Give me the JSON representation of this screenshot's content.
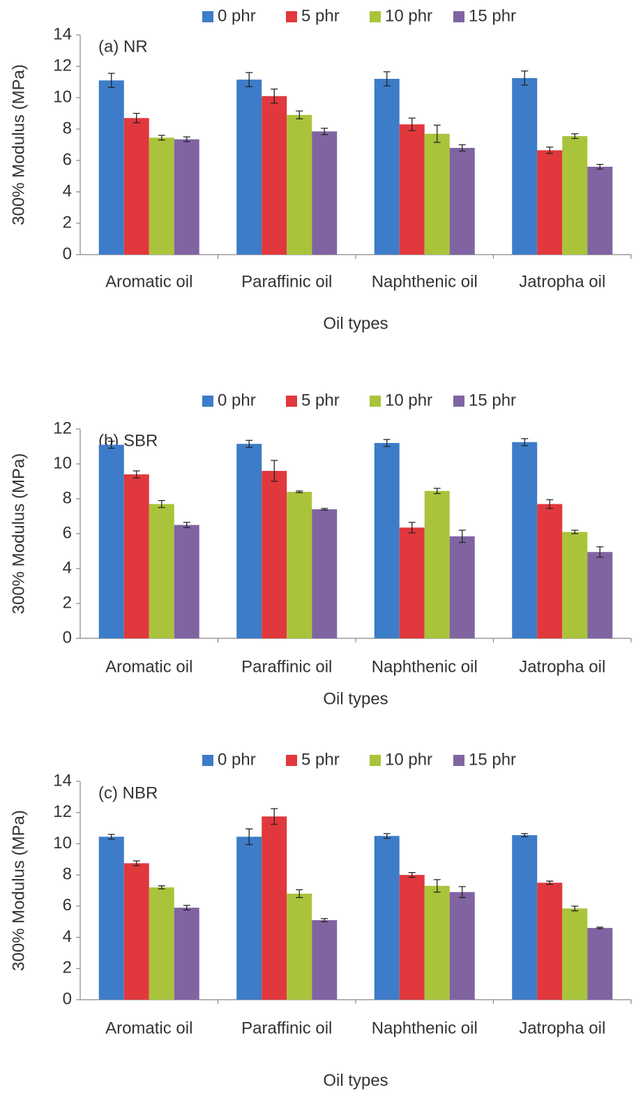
{
  "chart_data": [
    {
      "type": "bar",
      "annotation": "(a) NR",
      "x_label": "Oil types",
      "y_label": "300% Modulus (MPa)",
      "categories": [
        "Aromatic oil",
        "Paraffinic oil",
        "Naphthenic oil",
        "Jatropha oil"
      ],
      "ylim": [
        0,
        14
      ],
      "yticks": [
        0,
        2,
        4,
        6,
        8,
        10,
        12,
        14
      ],
      "series": [
        {
          "name": "0 phr",
          "color": "#3d7cc9",
          "values": [
            11.1,
            11.15,
            11.2,
            11.25
          ],
          "errors": [
            0.45,
            0.45,
            0.45,
            0.45
          ]
        },
        {
          "name": "5 phr",
          "color": "#e0383d",
          "values": [
            8.7,
            10.1,
            8.3,
            6.65
          ],
          "errors": [
            0.3,
            0.45,
            0.4,
            0.2
          ]
        },
        {
          "name": "10 phr",
          "color": "#a9c43a",
          "values": [
            7.45,
            8.9,
            7.7,
            7.55
          ],
          "errors": [
            0.15,
            0.25,
            0.55,
            0.15
          ]
        },
        {
          "name": "15 phr",
          "color": "#8064a2",
          "values": [
            7.35,
            7.85,
            6.8,
            5.6
          ],
          "errors": [
            0.15,
            0.2,
            0.2,
            0.15
          ]
        }
      ]
    },
    {
      "type": "bar",
      "annotation": "(b) SBR",
      "x_label": "Oil types",
      "y_label": "300% Modulus (MPa)",
      "categories": [
        "Aromatic oil",
        "Paraffinic oil",
        "Naphthenic oil",
        "Jatropha oil"
      ],
      "ylim": [
        0,
        12
      ],
      "yticks": [
        0,
        2,
        4,
        6,
        8,
        10,
        12
      ],
      "series": [
        {
          "name": "0 phr",
          "color": "#3d7cc9",
          "values": [
            11.1,
            11.15,
            11.2,
            11.25
          ],
          "errors": [
            0.2,
            0.2,
            0.2,
            0.2
          ]
        },
        {
          "name": "5 phr",
          "color": "#e0383d",
          "values": [
            9.4,
            9.6,
            6.35,
            7.7
          ],
          "errors": [
            0.2,
            0.6,
            0.3,
            0.25
          ]
        },
        {
          "name": "10 phr",
          "color": "#a9c43a",
          "values": [
            7.7,
            8.4,
            8.45,
            6.1
          ],
          "errors": [
            0.2,
            0.05,
            0.15,
            0.1
          ]
        },
        {
          "name": "15 phr",
          "color": "#8064a2",
          "values": [
            6.5,
            7.4,
            5.85,
            4.95
          ],
          "errors": [
            0.15,
            0.05,
            0.35,
            0.3
          ]
        }
      ]
    },
    {
      "type": "bar",
      "annotation": "(c) NBR",
      "x_label": "Oil types",
      "y_label": "300% Modulus (MPa)",
      "categories": [
        "Aromatic oil",
        "Paraffinic oil",
        "Naphthenic oil",
        "Jatropha oil"
      ],
      "ylim": [
        0,
        14
      ],
      "yticks": [
        0,
        2,
        4,
        6,
        8,
        10,
        12,
        14
      ],
      "series": [
        {
          "name": "0 phr",
          "color": "#3d7cc9",
          "values": [
            10.45,
            10.45,
            10.5,
            10.55
          ],
          "errors": [
            0.15,
            0.5,
            0.15,
            0.1
          ]
        },
        {
          "name": "5 phr",
          "color": "#e0383d",
          "values": [
            8.75,
            11.75,
            8.0,
            7.5
          ],
          "errors": [
            0.15,
            0.5,
            0.15,
            0.1
          ]
        },
        {
          "name": "10 phr",
          "color": "#a9c43a",
          "values": [
            7.2,
            6.8,
            7.3,
            5.85
          ],
          "errors": [
            0.1,
            0.25,
            0.4,
            0.15
          ]
        },
        {
          "name": "15 phr",
          "color": "#8064a2",
          "values": [
            5.9,
            5.1,
            6.9,
            4.6
          ],
          "errors": [
            0.15,
            0.1,
            0.35,
            0.05
          ]
        }
      ]
    }
  ]
}
